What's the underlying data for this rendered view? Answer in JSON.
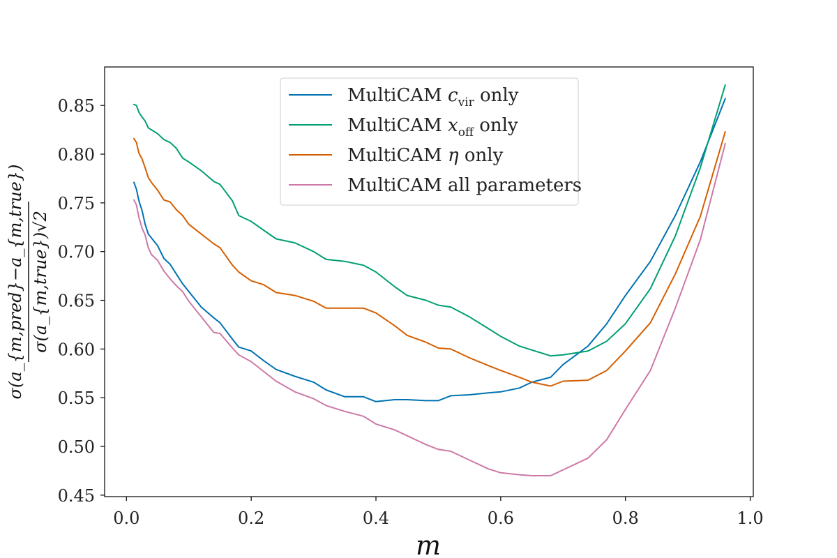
{
  "chart_data": {
    "type": "line",
    "xlabel": "m",
    "ylabel_num": "σ(a_{m,pred}−a_{m,true})",
    "ylabel_den": "σ(a_{m,true})√2",
    "xlim": [
      -0.035,
      1.005
    ],
    "ylim": [
      0.4485,
      0.8895
    ],
    "xticks": [
      0.0,
      0.2,
      0.4,
      0.6,
      0.8,
      1.0
    ],
    "xtick_labels": [
      "0.0",
      "0.2",
      "0.4",
      "0.6",
      "0.8",
      "1.0"
    ],
    "yticks": [
      0.45,
      0.5,
      0.55,
      0.6,
      0.65,
      0.7,
      0.75,
      0.8,
      0.85
    ],
    "ytick_labels": [
      "0.45",
      "0.50",
      "0.55",
      "0.60",
      "0.65",
      "0.70",
      "0.75",
      "0.80",
      "0.85"
    ],
    "grid": false,
    "legend_position": "top-center",
    "series": [
      {
        "name": "MultiCAM c_vir only",
        "color": "#0072b2",
        "x": [
          0.012,
          0.016,
          0.02,
          0.025,
          0.03,
          0.035,
          0.04,
          0.05,
          0.06,
          0.07,
          0.08,
          0.09,
          0.1,
          0.12,
          0.14,
          0.15,
          0.17,
          0.18,
          0.2,
          0.22,
          0.24,
          0.27,
          0.3,
          0.32,
          0.35,
          0.38,
          0.4,
          0.43,
          0.45,
          0.48,
          0.5,
          0.52,
          0.55,
          0.58,
          0.6,
          0.63,
          0.65,
          0.68,
          0.7,
          0.74,
          0.77,
          0.8,
          0.84,
          0.88,
          0.92,
          0.96
        ],
        "y": [
          0.771,
          0.764,
          0.752,
          0.742,
          0.728,
          0.718,
          0.714,
          0.706,
          0.693,
          0.687,
          0.677,
          0.667,
          0.659,
          0.643,
          0.632,
          0.627,
          0.61,
          0.602,
          0.598,
          0.588,
          0.579,
          0.572,
          0.566,
          0.558,
          0.551,
          0.551,
          0.546,
          0.548,
          0.548,
          0.547,
          0.547,
          0.552,
          0.553,
          0.555,
          0.556,
          0.56,
          0.566,
          0.571,
          0.584,
          0.603,
          0.626,
          0.655,
          0.69,
          0.737,
          0.792,
          0.857
        ]
      },
      {
        "name": "MultiCAM x_off only",
        "color": "#009e73",
        "x": [
          0.012,
          0.016,
          0.02,
          0.025,
          0.03,
          0.035,
          0.04,
          0.05,
          0.06,
          0.07,
          0.08,
          0.09,
          0.1,
          0.12,
          0.14,
          0.15,
          0.17,
          0.18,
          0.2,
          0.22,
          0.24,
          0.27,
          0.3,
          0.32,
          0.35,
          0.38,
          0.4,
          0.43,
          0.45,
          0.48,
          0.5,
          0.52,
          0.55,
          0.58,
          0.6,
          0.63,
          0.65,
          0.68,
          0.7,
          0.74,
          0.77,
          0.8,
          0.84,
          0.88,
          0.92,
          0.96
        ],
        "y": [
          0.851,
          0.85,
          0.843,
          0.838,
          0.834,
          0.827,
          0.825,
          0.821,
          0.815,
          0.812,
          0.806,
          0.796,
          0.792,
          0.783,
          0.772,
          0.769,
          0.752,
          0.737,
          0.731,
          0.722,
          0.713,
          0.709,
          0.7,
          0.692,
          0.69,
          0.686,
          0.679,
          0.664,
          0.655,
          0.65,
          0.645,
          0.643,
          0.633,
          0.621,
          0.613,
          0.603,
          0.599,
          0.593,
          0.594,
          0.598,
          0.608,
          0.626,
          0.662,
          0.716,
          0.786,
          0.871
        ]
      },
      {
        "name": "MultiCAM η only",
        "color": "#d55e00",
        "x": [
          0.012,
          0.016,
          0.02,
          0.025,
          0.03,
          0.035,
          0.04,
          0.05,
          0.06,
          0.07,
          0.08,
          0.09,
          0.1,
          0.12,
          0.14,
          0.15,
          0.17,
          0.18,
          0.2,
          0.22,
          0.24,
          0.27,
          0.3,
          0.32,
          0.35,
          0.38,
          0.4,
          0.43,
          0.45,
          0.48,
          0.5,
          0.52,
          0.55,
          0.58,
          0.6,
          0.63,
          0.65,
          0.68,
          0.7,
          0.74,
          0.77,
          0.8,
          0.84,
          0.88,
          0.92,
          0.96
        ],
        "y": [
          0.816,
          0.812,
          0.801,
          0.795,
          0.786,
          0.776,
          0.771,
          0.763,
          0.753,
          0.751,
          0.743,
          0.737,
          0.728,
          0.718,
          0.708,
          0.704,
          0.686,
          0.679,
          0.67,
          0.666,
          0.658,
          0.655,
          0.649,
          0.642,
          0.642,
          0.642,
          0.637,
          0.624,
          0.614,
          0.607,
          0.601,
          0.6,
          0.591,
          0.583,
          0.578,
          0.571,
          0.566,
          0.562,
          0.567,
          0.568,
          0.578,
          0.598,
          0.627,
          0.677,
          0.736,
          0.823
        ]
      },
      {
        "name": "MultiCAM all parameters",
        "color": "#cc79a7",
        "x": [
          0.012,
          0.016,
          0.02,
          0.025,
          0.03,
          0.035,
          0.04,
          0.05,
          0.06,
          0.07,
          0.08,
          0.09,
          0.1,
          0.12,
          0.14,
          0.15,
          0.17,
          0.18,
          0.2,
          0.22,
          0.24,
          0.27,
          0.3,
          0.32,
          0.35,
          0.38,
          0.4,
          0.43,
          0.45,
          0.48,
          0.5,
          0.52,
          0.55,
          0.58,
          0.6,
          0.63,
          0.65,
          0.68,
          0.7,
          0.74,
          0.77,
          0.8,
          0.84,
          0.88,
          0.92,
          0.96
        ],
        "y": [
          0.753,
          0.748,
          0.735,
          0.724,
          0.717,
          0.704,
          0.697,
          0.691,
          0.68,
          0.672,
          0.665,
          0.659,
          0.649,
          0.633,
          0.617,
          0.616,
          0.601,
          0.594,
          0.587,
          0.577,
          0.567,
          0.556,
          0.549,
          0.542,
          0.536,
          0.531,
          0.523,
          0.517,
          0.511,
          0.502,
          0.497,
          0.495,
          0.486,
          0.477,
          0.473,
          0.471,
          0.47,
          0.47,
          0.476,
          0.488,
          0.507,
          0.538,
          0.578,
          0.642,
          0.712,
          0.811
        ]
      }
    ]
  },
  "legend": {
    "items": [
      {
        "prefix": "MultiCAM ",
        "sym": "c",
        "sub": "vir",
        "suffix": " only"
      },
      {
        "prefix": "MultiCAM ",
        "sym": "x",
        "sub": "off",
        "suffix": " only"
      },
      {
        "prefix": "MultiCAM ",
        "sym": "η",
        "sub": "",
        "suffix": " only"
      },
      {
        "prefix": "MultiCAM all parameters",
        "sym": "",
        "sub": "",
        "suffix": ""
      }
    ]
  }
}
